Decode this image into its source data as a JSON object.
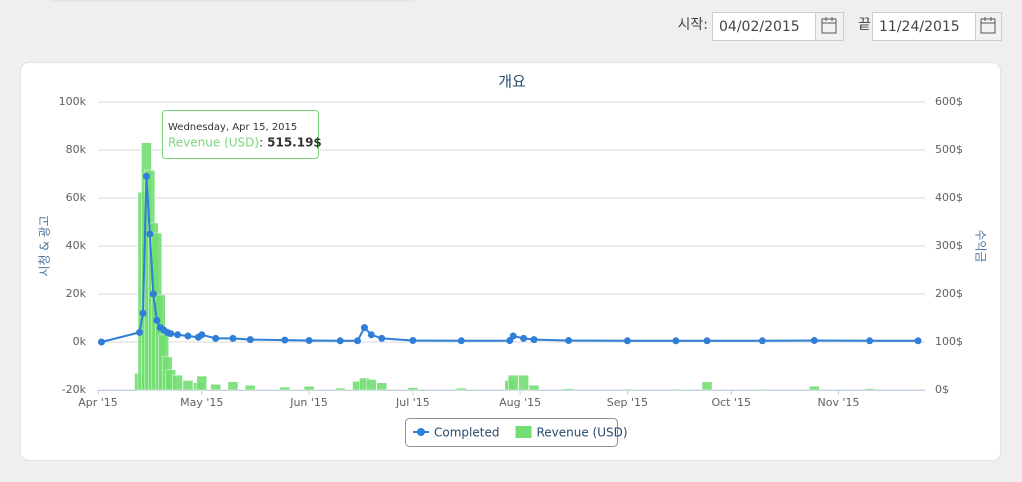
{
  "filters": {
    "start_label": "시작:",
    "start_date": "04/02/2015",
    "end_label": "끝",
    "end_date": "11/24/2015"
  },
  "chart_data": {
    "type": "combo",
    "title": "개요",
    "y_label": "시청 & 광고",
    "y2_label": "수익금",
    "x": [
      "2015-04-02",
      "2015-04-13",
      "2015-04-14",
      "2015-04-15",
      "2015-04-16",
      "2015-04-17",
      "2015-04-18",
      "2015-04-19",
      "2015-04-20",
      "2015-04-21",
      "2015-04-22",
      "2015-04-24",
      "2015-04-27",
      "2015-04-30",
      "2015-05-01",
      "2015-05-05",
      "2015-05-10",
      "2015-05-15",
      "2015-05-25",
      "2015-06-01",
      "2015-06-10",
      "2015-06-15",
      "2015-06-17",
      "2015-06-19",
      "2015-06-22",
      "2015-07-01",
      "2015-07-15",
      "2015-07-29",
      "2015-07-30",
      "2015-08-02",
      "2015-08-05",
      "2015-08-15",
      "2015-09-01",
      "2015-09-15",
      "2015-09-24",
      "2015-10-10",
      "2015-10-25",
      "2015-11-10",
      "2015-11-24"
    ],
    "series": [
      {
        "name": "Completed",
        "color": "#2f7ed8",
        "kind": "line",
        "values": [
          0,
          4000,
          12000,
          69000,
          45000,
          20000,
          9000,
          6000,
          5000,
          4000,
          3500,
          3000,
          2500,
          2000,
          3000,
          1500,
          1500,
          1000,
          800,
          600,
          500,
          500,
          6000,
          3000,
          1500,
          600,
          500,
          600,
          2500,
          1500,
          1000,
          600,
          500,
          500,
          500,
          500,
          600,
          500,
          500
        ]
      },
      {
        "name": "Revenue (USD)",
        "color": "#72de72",
        "kind": "bar",
        "axis": "y2",
        "values": [
          null,
          35,
          412,
          515.19,
          458,
          348,
          327,
          198,
          115,
          69,
          42,
          31,
          20,
          15,
          29,
          12,
          17,
          10,
          6,
          8,
          4,
          18,
          25,
          22,
          15,
          5,
          4,
          20,
          31,
          31,
          10,
          3,
          2,
          2,
          17,
          2,
          8,
          3,
          null
        ]
      }
    ],
    "xlim": [
      "2015-04-01",
      "2015-11-26"
    ],
    "xticks": [
      {
        "value": "2015-04-01",
        "label": "Apr '15"
      },
      {
        "value": "2015-05-01",
        "label": "May '15"
      },
      {
        "value": "2015-06-01",
        "label": "Jun '15"
      },
      {
        "value": "2015-07-01",
        "label": "Jul '15"
      },
      {
        "value": "2015-08-01",
        "label": "Aug '15"
      },
      {
        "value": "2015-09-01",
        "label": "Sep '15"
      },
      {
        "value": "2015-10-01",
        "label": "Oct '15"
      },
      {
        "value": "2015-11-01",
        "label": "Nov '15"
      }
    ],
    "ylim": [
      -20000,
      100000
    ],
    "yticks": [
      {
        "value": -20000,
        "label": "-20k"
      },
      {
        "value": 0,
        "label": "0k"
      },
      {
        "value": 20000,
        "label": "20k"
      },
      {
        "value": 40000,
        "label": "40k"
      },
      {
        "value": 60000,
        "label": "60k"
      },
      {
        "value": 80000,
        "label": "80k"
      },
      {
        "value": 100000,
        "label": "100k"
      }
    ],
    "y2lim": [
      0,
      600
    ],
    "y2ticks": [
      {
        "value": 0,
        "label": "0$"
      },
      {
        "value": 100,
        "label": "100$"
      },
      {
        "value": 200,
        "label": "200$"
      },
      {
        "value": 300,
        "label": "300$"
      },
      {
        "value": 400,
        "label": "400$"
      },
      {
        "value": 500,
        "label": "500$"
      },
      {
        "value": 600,
        "label": "600$"
      }
    ],
    "grid": true,
    "legend": "bottom",
    "tooltip": {
      "date": "Wednesday, Apr 15, 2015",
      "separator": ":",
      "value_label": "515.19$"
    }
  }
}
